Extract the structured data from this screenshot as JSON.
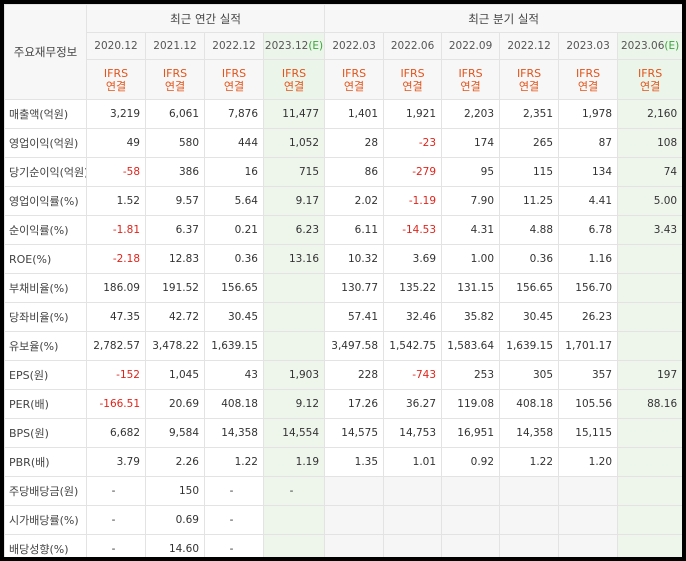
{
  "header": {
    "row_label": "주요재무정보",
    "annual_group": "최근 연간 실적",
    "quarter_group": "최근 분기 실적",
    "annual_periods": [
      {
        "date": "2020.12",
        "est": ""
      },
      {
        "date": "2021.12",
        "est": ""
      },
      {
        "date": "2022.12",
        "est": ""
      },
      {
        "date": "2023.12",
        "est": "(E)"
      }
    ],
    "quarter_periods": [
      {
        "date": "2022.03",
        "est": ""
      },
      {
        "date": "2022.06",
        "est": ""
      },
      {
        "date": "2022.09",
        "est": ""
      },
      {
        "date": "2022.12",
        "est": ""
      },
      {
        "date": "2023.03",
        "est": ""
      },
      {
        "date": "2023.06",
        "est": "(E)"
      }
    ],
    "ifrs_top": "IFRS",
    "ifrs_bottom": "연결"
  },
  "rows": [
    {
      "label": "매출액(억원)",
      "values": [
        "3,219",
        "6,061",
        "7,876",
        "11,477",
        "1,401",
        "1,921",
        "2,203",
        "2,351",
        "1,978",
        "2,160"
      ]
    },
    {
      "label": "영업이익(억원)",
      "values": [
        "49",
        "580",
        "444",
        "1,052",
        "28",
        "-23",
        "174",
        "265",
        "87",
        "108"
      ]
    },
    {
      "label": "당기순이익(억원)",
      "values": [
        "-58",
        "386",
        "16",
        "715",
        "86",
        "-279",
        "95",
        "115",
        "134",
        "74"
      ]
    },
    {
      "label": "영업이익률(%)",
      "values": [
        "1.52",
        "9.57",
        "5.64",
        "9.17",
        "2.02",
        "-1.19",
        "7.90",
        "11.25",
        "4.41",
        "5.00"
      ]
    },
    {
      "label": "순이익률(%)",
      "values": [
        "-1.81",
        "6.37",
        "0.21",
        "6.23",
        "6.11",
        "-14.53",
        "4.31",
        "4.88",
        "6.78",
        "3.43"
      ]
    },
    {
      "label": "ROE(%)",
      "values": [
        "-2.18",
        "12.83",
        "0.36",
        "13.16",
        "10.32",
        "3.69",
        "1.00",
        "0.36",
        "1.16",
        ""
      ]
    },
    {
      "label": "부채비율(%)",
      "values": [
        "186.09",
        "191.52",
        "156.65",
        "",
        "130.77",
        "135.22",
        "131.15",
        "156.65",
        "156.70",
        ""
      ]
    },
    {
      "label": "당좌비율(%)",
      "values": [
        "47.35",
        "42.72",
        "30.45",
        "",
        "57.41",
        "32.46",
        "35.82",
        "30.45",
        "26.23",
        ""
      ]
    },
    {
      "label": "유보율(%)",
      "values": [
        "2,782.57",
        "3,478.22",
        "1,639.15",
        "",
        "3,497.58",
        "1,542.75",
        "1,583.64",
        "1,639.15",
        "1,701.17",
        ""
      ]
    },
    {
      "label": "EPS(원)",
      "values": [
        "-152",
        "1,045",
        "43",
        "1,903",
        "228",
        "-743",
        "253",
        "305",
        "357",
        "197"
      ]
    },
    {
      "label": "PER(배)",
      "values": [
        "-166.51",
        "20.69",
        "408.18",
        "9.12",
        "17.26",
        "36.27",
        "119.08",
        "408.18",
        "105.56",
        "88.16"
      ]
    },
    {
      "label": "BPS(원)",
      "values": [
        "6,682",
        "9,584",
        "14,358",
        "14,554",
        "14,575",
        "14,753",
        "16,951",
        "14,358",
        "15,115",
        ""
      ]
    },
    {
      "label": "PBR(배)",
      "values": [
        "3.79",
        "2.26",
        "1.22",
        "1.19",
        "1.35",
        "1.01",
        "0.92",
        "1.22",
        "1.20",
        ""
      ]
    },
    {
      "label": "주당배당금(원)",
      "values": [
        "-",
        "150",
        "-",
        "-",
        "",
        "",
        "",
        "",
        "",
        ""
      ]
    },
    {
      "label": "시가배당률(%)",
      "values": [
        "-",
        "0.69",
        "-",
        "",
        "",
        "",
        "",
        "",
        "",
        ""
      ]
    },
    {
      "label": "배당성향(%)",
      "values": [
        "-",
        "14.60",
        "-",
        "",
        "",
        "",
        "",
        "",
        "",
        ""
      ]
    }
  ],
  "colors": {
    "negative": "#e0241b",
    "ifrs": "#e2541a",
    "estimate_bg": "#eef6ec",
    "estimate_mark": "#3aa63a"
  }
}
